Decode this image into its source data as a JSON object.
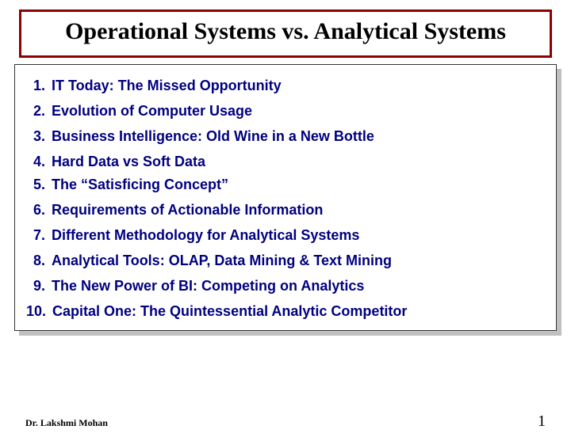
{
  "title": "Operational Systems vs. Analytical Systems",
  "items": [
    {
      "num": "1.",
      "text": "IT Today: The Missed Opportunity"
    },
    {
      "num": "2.",
      "text": "Evolution of Computer Usage"
    },
    {
      "num": "3.",
      "text": "Business Intelligence: Old Wine in a New Bottle"
    },
    {
      "num": "4.",
      "text": "Hard Data vs Soft Data"
    },
    {
      "num": "5.",
      "text": "The “Satisficing Concept”"
    },
    {
      "num": "6.",
      "text": "Requirements of Actionable Information"
    },
    {
      "num": "7.",
      "text": "Different Methodology for Analytical Systems"
    },
    {
      "num": "8.",
      "text": "Analytical Tools: OLAP, Data Mining & Text Mining"
    },
    {
      "num": "9.",
      "text": "The New Power of BI: Competing on Analytics"
    },
    {
      "num": "10.",
      "text": "Capital One: The Quintessential Analytic Competitor"
    }
  ],
  "footer": {
    "author": "Dr. Lakshmi Mohan",
    "page": "1"
  },
  "colors": {
    "title_border": "#8b0000",
    "item_text": "#000080",
    "background": "#ffffff",
    "shadow": "#c0c0c0"
  }
}
